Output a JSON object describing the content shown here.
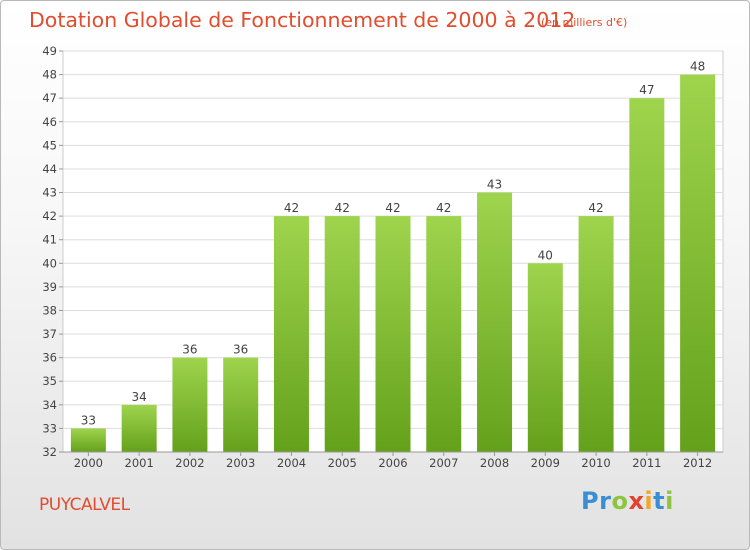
{
  "title": "Dotation Globale de Fonctionnement de 2000 à 2012",
  "subtitle": "(en milliers d'€)",
  "place_name": "PUYCALVEL",
  "logo": {
    "letters": [
      "P",
      "r",
      "o",
      "x",
      "i",
      "t",
      "i"
    ],
    "colors": [
      "#3a8ed3",
      "#3a8ed3",
      "#8cc63f",
      "#e2422f",
      "#f4a623",
      "#3a8ed3",
      "#8cc63f"
    ]
  },
  "colors": {
    "title": "#e24c2f",
    "bar_light": "#9fd44d",
    "bar_dark": "#64a11b",
    "grid": "#dddddd",
    "axis_text": "#444444"
  },
  "chart_data": {
    "type": "bar",
    "categories": [
      "2000",
      "2001",
      "2002",
      "2003",
      "2004",
      "2005",
      "2006",
      "2007",
      "2008",
      "2009",
      "2010",
      "2011",
      "2012"
    ],
    "values": [
      33,
      34,
      36,
      36,
      42,
      42,
      42,
      42,
      43,
      40,
      42,
      47,
      48
    ],
    "ylim": [
      32,
      49
    ],
    "yticks": [
      32,
      33,
      34,
      35,
      36,
      37,
      38,
      39,
      40,
      41,
      42,
      43,
      44,
      45,
      46,
      47,
      48,
      49
    ],
    "grid": true,
    "data_labels": true
  }
}
